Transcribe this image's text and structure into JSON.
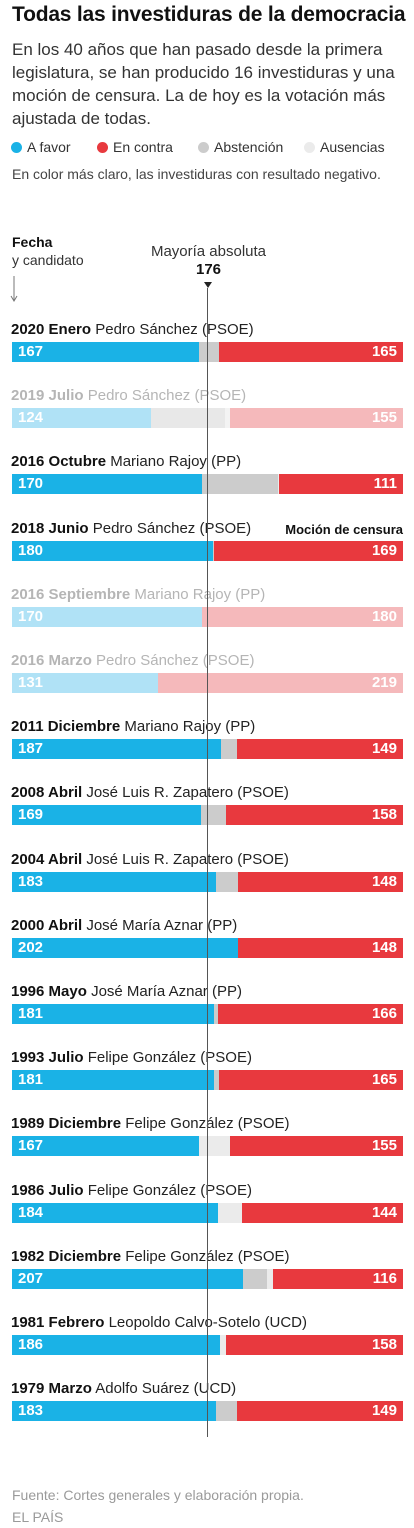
{
  "title": "Todas las investiduras de la democracia",
  "subtitle": "En los 40 años que han pasado desde la primera legislatura, se han producido 16 investiduras y una moción de censura. La de hoy es la votación más ajustada de todas.",
  "legend": [
    {
      "label": "A favor",
      "color": "#1ab2e6"
    },
    {
      "label": "En contra",
      "color": "#e8393e"
    },
    {
      "label": "Abstención",
      "color": "#cccccc"
    },
    {
      "label": "Ausencias",
      "color": "#ebebeb"
    }
  ],
  "note": "En color más claro, las investiduras con resultado negativo.",
  "axis": {
    "title": "Fecha",
    "subtitle": "y candidato"
  },
  "majority": {
    "label": "Mayoría absoluta",
    "value": "176"
  },
  "colors": {
    "favor": "#1ab2e6",
    "contra": "#e8393e",
    "abstencion": "#cccccc",
    "ausencias": "#ebebeb",
    "favor_light": "#b0e2f6",
    "contra_light": "#f5b9bb",
    "abstencion_light": "#e8e8e8",
    "ausencias_light": "#f3f3f3"
  },
  "chart_data": {
    "type": "bar",
    "orientation": "horizontal-stacked",
    "total_seats": 350,
    "majority_threshold": 176,
    "rows": [
      {
        "date": "2020 Enero",
        "candidate": "Pedro Sánchez (PSOE)",
        "favor": 167,
        "abstencion": 18,
        "ausencias": 0,
        "contra": 165,
        "negative": false,
        "note": ""
      },
      {
        "date": "2019 Julio",
        "candidate": "Pedro Sánchez (PSOE)",
        "favor": 124,
        "abstencion": 67,
        "ausencias": 4,
        "contra": 155,
        "negative": true,
        "note": ""
      },
      {
        "date": "2016 Octubre",
        "candidate": "Mariano Rajoy (PP)",
        "favor": 170,
        "abstencion": 68,
        "ausencias": 1,
        "contra": 111,
        "negative": false,
        "note": ""
      },
      {
        "date": "2018 Junio",
        "candidate": "Pedro Sánchez (PSOE)",
        "favor": 180,
        "abstencion": 1,
        "ausencias": 0,
        "contra": 169,
        "negative": false,
        "note": "Moción de censura"
      },
      {
        "date": "2016 Septiembre",
        "candidate": "Mariano Rajoy (PP)",
        "favor": 170,
        "abstencion": 0,
        "ausencias": 0,
        "contra": 180,
        "negative": true,
        "note": ""
      },
      {
        "date": "2016 Marzo",
        "candidate": "Pedro Sánchez (PSOE)",
        "favor": 131,
        "abstencion": 0,
        "ausencias": 0,
        "contra": 219,
        "negative": true,
        "note": ""
      },
      {
        "date": "2011 Diciembre",
        "candidate": "Mariano Rajoy (PP)",
        "favor": 187,
        "abstencion": 14,
        "ausencias": 0,
        "contra": 149,
        "negative": false,
        "note": ""
      },
      {
        "date": "2008 Abril",
        "candidate": "José Luis R. Zapatero (PSOE)",
        "favor": 169,
        "abstencion": 23,
        "ausencias": 0,
        "contra": 158,
        "negative": false,
        "note": ""
      },
      {
        "date": "2004 Abril",
        "candidate": "José Luis R. Zapatero (PSOE)",
        "favor": 183,
        "abstencion": 19,
        "ausencias": 0,
        "contra": 148,
        "negative": false,
        "note": ""
      },
      {
        "date": "2000 Abril",
        "candidate": "José María Aznar (PP)",
        "favor": 202,
        "abstencion": 0,
        "ausencias": 0,
        "contra": 148,
        "negative": false,
        "note": ""
      },
      {
        "date": "1996 Mayo",
        "candidate": "José María Aznar (PP)",
        "favor": 181,
        "abstencion": 3,
        "ausencias": 0,
        "contra": 166,
        "negative": false,
        "note": ""
      },
      {
        "date": "1993 Julio",
        "candidate": "Felipe González (PSOE)",
        "favor": 181,
        "abstencion": 4,
        "ausencias": 0,
        "contra": 165,
        "negative": false,
        "note": ""
      },
      {
        "date": "1989 Diciembre",
        "candidate": "Felipe González (PSOE)",
        "favor": 167,
        "abstencion": 0,
        "ausencias": 28,
        "contra": 155,
        "negative": false,
        "note": ""
      },
      {
        "date": "1986 Julio",
        "candidate": "Felipe González (PSOE)",
        "favor": 184,
        "abstencion": 0,
        "ausencias": 22,
        "contra": 144,
        "negative": false,
        "note": ""
      },
      {
        "date": "1982 Diciembre",
        "candidate": "Felipe González (PSOE)",
        "favor": 207,
        "abstencion": 21,
        "ausencias": 6,
        "contra": 116,
        "negative": false,
        "note": ""
      },
      {
        "date": "1981 Febrero",
        "candidate": "Leopoldo Calvo-Sotelo (UCD)",
        "favor": 186,
        "abstencion": 0,
        "ausencias": 6,
        "contra": 158,
        "negative": false,
        "note": ""
      },
      {
        "date": "1979 Marzo",
        "candidate": "Adolfo Suárez (UCD)",
        "favor": 183,
        "abstencion": 18,
        "ausencias": 0,
        "contra": 149,
        "negative": false,
        "note": ""
      }
    ]
  },
  "source": "Fuente: Cortes generales y elaboración propia.",
  "publisher": "EL PAÍS"
}
